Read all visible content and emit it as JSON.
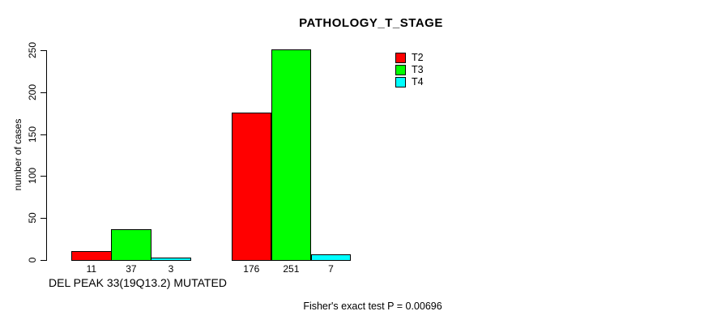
{
  "chart_data": {
    "type": "bar",
    "title": "PATHOLOGY_T_STAGE",
    "ylabel": "number of cases",
    "group_axis_label": "DEL PEAK 33(19Q13.2) MUTATED",
    "ylim": [
      0,
      250
    ],
    "yticks": [
      0,
      50,
      100,
      150,
      200,
      250
    ],
    "grid": false,
    "legend_position": "inside-top-right",
    "bar_value_labels_shown": true,
    "categories": [
      "DEL PEAK 33(19Q13.2) MUTATED",
      ""
    ],
    "series": [
      {
        "name": "T2",
        "color": "#ff0000",
        "values": [
          11,
          176
        ]
      },
      {
        "name": "T3",
        "color": "#00ff00",
        "values": [
          37,
          251
        ]
      },
      {
        "name": "T4",
        "color": "#00ffff",
        "values": [
          3,
          7
        ]
      }
    ]
  },
  "footer": {
    "fisher_note": "Fisher's exact test P = 0.00696"
  }
}
